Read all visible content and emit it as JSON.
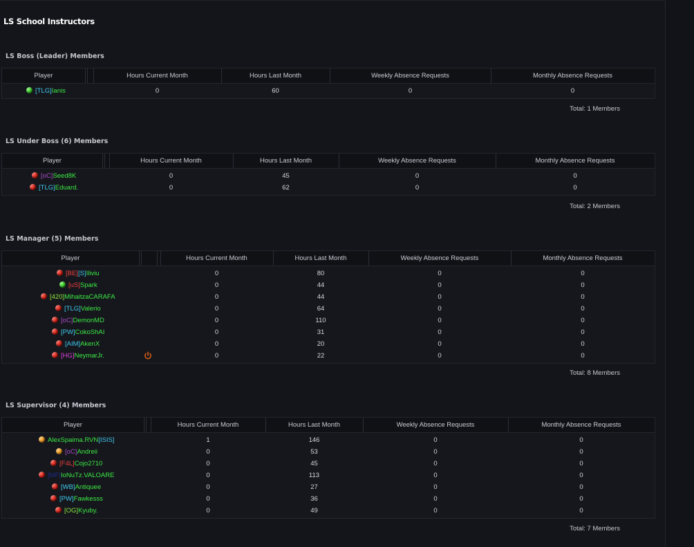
{
  "page_title": "LS School Instructors",
  "columns": [
    "Player",
    "Hours Current Month",
    "Hours Last Month",
    "Weekly Absence Requests",
    "Monthly Absence Requests"
  ],
  "colors": {
    "background": "#121318",
    "panel": "#14151a",
    "header_row": "#101115",
    "name_green": "#3bea46",
    "tag_green": "#3bea46",
    "tag_cyan": "#3fc9f0",
    "tag_purple": "#a84cc8",
    "tag_red": "#f04040",
    "tag_magenta": "#e040e0",
    "tag_navy": "#1c2a8a",
    "tag_lime": "#8ce840",
    "status_online": "#28b41a",
    "status_offline": "#c0140c",
    "status_away": "#e08a10",
    "power_icon": "#e0601a"
  },
  "sections": [
    {
      "title": "LS Boss (Leader) Members",
      "total": "Total: 1 Members",
      "rows": [
        {
          "status": "green",
          "tag": "[TLG]",
          "tag_color": "#3fc9f0",
          "name": "Ianis",
          "hcm": "0",
          "hlm": "60",
          "war": "0",
          "mar": "0"
        }
      ]
    },
    {
      "title": "LS Under Boss (6) Members",
      "total": "Total: 2 Members",
      "rows": [
        {
          "status": "red",
          "tag": "[oC]",
          "tag_color": "#a84cc8",
          "name": "Seed8K",
          "hcm": "0",
          "hlm": "45",
          "war": "0",
          "mar": "0"
        },
        {
          "status": "red",
          "tag": "[TLG]",
          "tag_color": "#3fc9f0",
          "name": "Eduard.",
          "hcm": "0",
          "hlm": "62",
          "war": "0",
          "mar": "0"
        }
      ]
    },
    {
      "title": "LS Manager (5) Members",
      "total": "Total: 8 Members",
      "rows": [
        {
          "status": "red",
          "tag": "[BE]",
          "tag_color": "#f04040",
          "tag2": "[S]",
          "tag2_color": "#3fc9f0",
          "name": "Iliviu",
          "hcm": "0",
          "hlm": "80",
          "war": "0",
          "mar": "0"
        },
        {
          "status": "green",
          "tag": "[uS]",
          "tag_color": "#f04040",
          "name": "Spark",
          "hcm": "0",
          "hlm": "44",
          "war": "0",
          "mar": "0"
        },
        {
          "status": "red",
          "tag": "[420]",
          "tag_color": "#8ce840",
          "name": "MihaitzaCARAFA",
          "hcm": "0",
          "hlm": "44",
          "war": "0",
          "mar": "0"
        },
        {
          "status": "red",
          "tag": "[TLG]",
          "tag_color": "#3fc9f0",
          "name": "Valerio",
          "hcm": "0",
          "hlm": "64",
          "war": "0",
          "mar": "0"
        },
        {
          "status": "red",
          "tag": "[oC]",
          "tag_color": "#a84cc8",
          "name": "DemonMD",
          "hcm": "0",
          "hlm": "110",
          "war": "0",
          "mar": "0"
        },
        {
          "status": "red",
          "tag": "[PW]",
          "tag_color": "#3fc9f0",
          "name": "CokoShAI",
          "hcm": "0",
          "hlm": "31",
          "war": "0",
          "mar": "0"
        },
        {
          "status": "red",
          "tag": "[AIM]",
          "tag_color": "#3fc9f0",
          "name": "AkenX",
          "hcm": "0",
          "hlm": "20",
          "war": "0",
          "mar": "0"
        },
        {
          "status": "red",
          "tag": "[HG]",
          "tag_color": "#e040e0",
          "name": "NeymarJr.",
          "hcm": "0",
          "hlm": "22",
          "war": "0",
          "mar": "0",
          "power_icon": "power-icon"
        }
      ]
    },
    {
      "title": "LS Supervisor (4) Members",
      "total": "Total: 7 Members",
      "rows": [
        {
          "status": "orange",
          "tag": "",
          "tag_color": "#3fc9f0",
          "name": "AlexSpaima.RVN",
          "name_suffix": "[ISIS]",
          "suffix_color": "#3fc9f0",
          "hcm": "1",
          "hlm": "146",
          "war": "0",
          "mar": "0"
        },
        {
          "status": "orange",
          "tag": "[oC]",
          "tag_color": "#a84cc8",
          "name": "Andreii",
          "hcm": "0",
          "hlm": "53",
          "war": "0",
          "mar": "0"
        },
        {
          "status": "red",
          "tag": "[F4L]",
          "tag_color": "#f04040",
          "name": "Cojo2710",
          "hcm": "0",
          "hlm": "45",
          "war": "0",
          "mar": "0"
        },
        {
          "status": "red",
          "tag": "[MF]",
          "tag_color": "#1c2a8a",
          "name": "IoNuTz.VALOARE",
          "hcm": "0",
          "hlm": "113",
          "war": "0",
          "mar": "0"
        },
        {
          "status": "red",
          "tag": "[WB]",
          "tag_color": "#3fc9f0",
          "name": "Antiquee",
          "hcm": "0",
          "hlm": "27",
          "war": "0",
          "mar": "0"
        },
        {
          "status": "red",
          "tag": "[PW]",
          "tag_color": "#3fc9f0",
          "name": "Fawkesss",
          "hcm": "0",
          "hlm": "36",
          "war": "0",
          "mar": "0"
        },
        {
          "status": "red",
          "tag": "[OG]",
          "tag_color": "#8ce840",
          "name": "Kyuby.",
          "hcm": "0",
          "hlm": "49",
          "war": "0",
          "mar": "0"
        }
      ]
    }
  ]
}
